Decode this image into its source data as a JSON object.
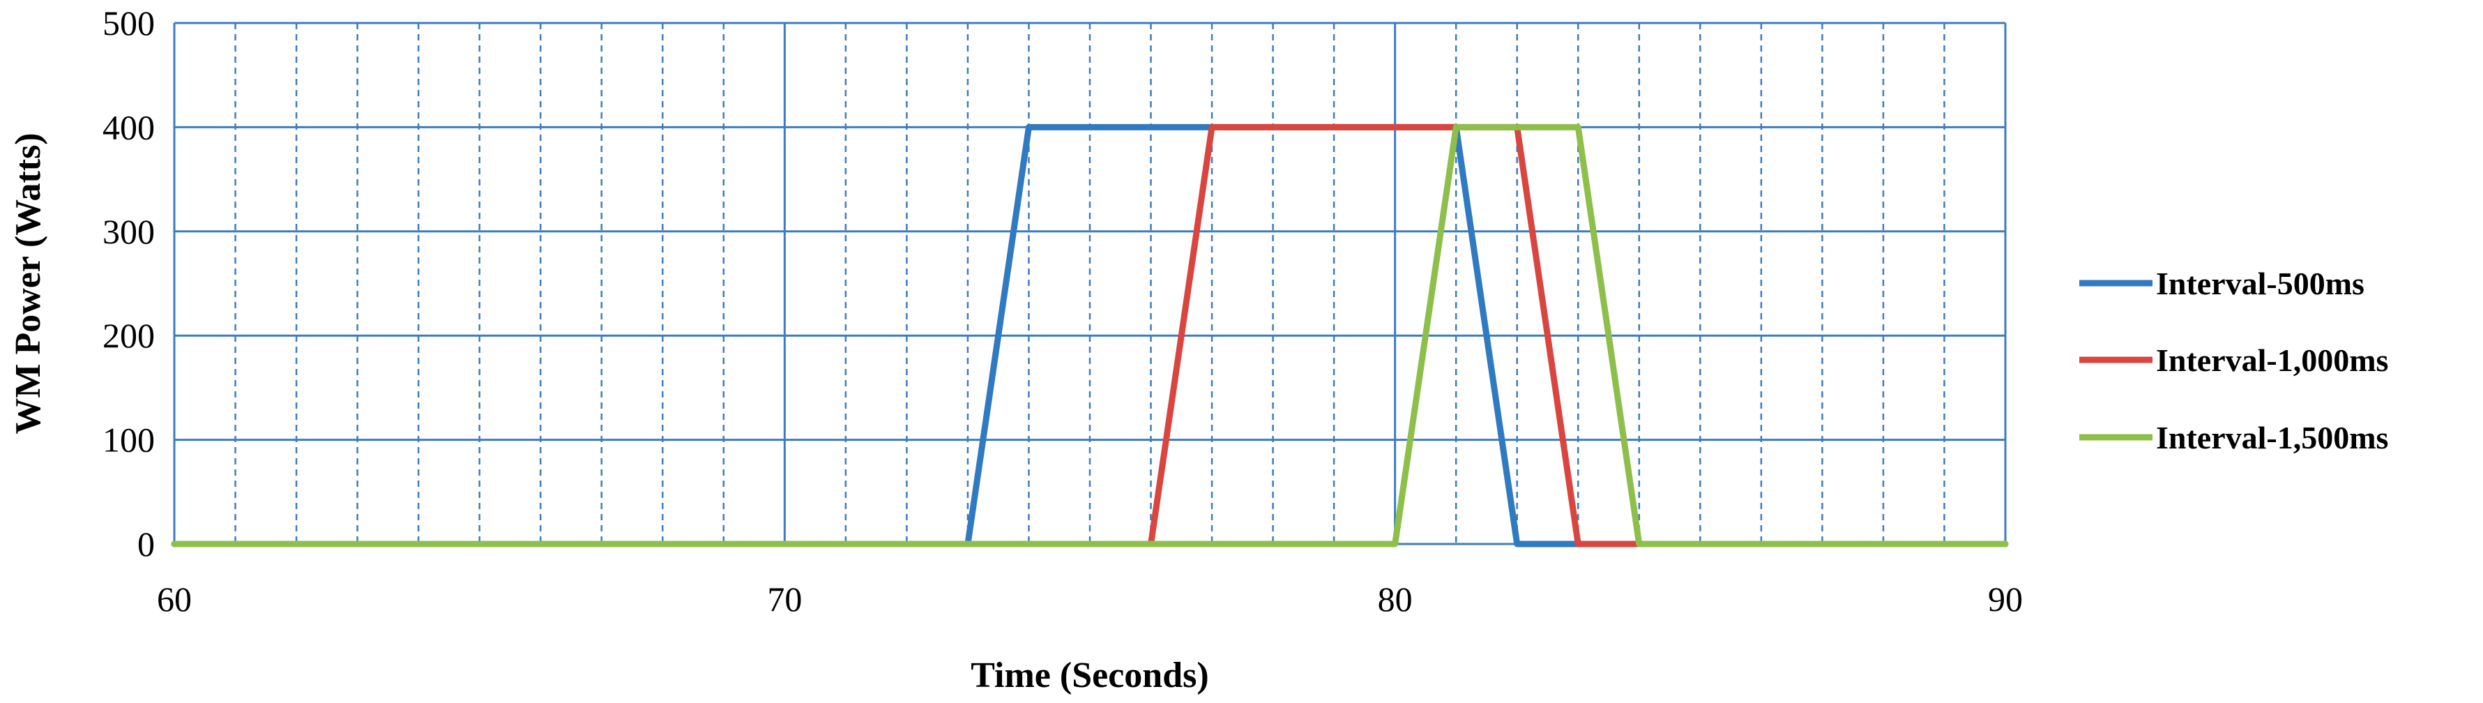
{
  "chart_data": {
    "type": "line",
    "title": "",
    "xlabel": "Time (Seconds)",
    "ylabel": "WM Power (Watts)",
    "xlim": [
      60,
      90
    ],
    "ylim": [
      0,
      500
    ],
    "x_ticks": [
      60,
      70,
      80,
      90
    ],
    "y_ticks": [
      0,
      100,
      200,
      300,
      400,
      500
    ],
    "x_minor_step": 1,
    "grid": true,
    "legend_position": "right",
    "series": [
      {
        "name": "Interval-500ms",
        "color": "#2F7AC0",
        "points": [
          [
            60,
            0
          ],
          [
            73,
            0
          ],
          [
            74,
            400
          ],
          [
            81,
            400
          ],
          [
            82,
            0
          ],
          [
            90,
            0
          ]
        ]
      },
      {
        "name": "Interval-1,000ms",
        "color": "#D9453F",
        "points": [
          [
            60,
            0
          ],
          [
            76,
            0
          ],
          [
            77,
            400
          ],
          [
            82,
            400
          ],
          [
            83,
            0
          ],
          [
            90,
            0
          ]
        ]
      },
      {
        "name": "Interval-1,500ms",
        "color": "#8DBF4A",
        "points": [
          [
            60,
            0
          ],
          [
            80,
            0
          ],
          [
            81,
            400
          ],
          [
            83,
            400
          ],
          [
            84,
            0
          ],
          [
            90,
            0
          ]
        ]
      }
    ]
  },
  "colors": {
    "grid_major": "#3C7CC0",
    "grid_minor": "#3C7CC0"
  }
}
